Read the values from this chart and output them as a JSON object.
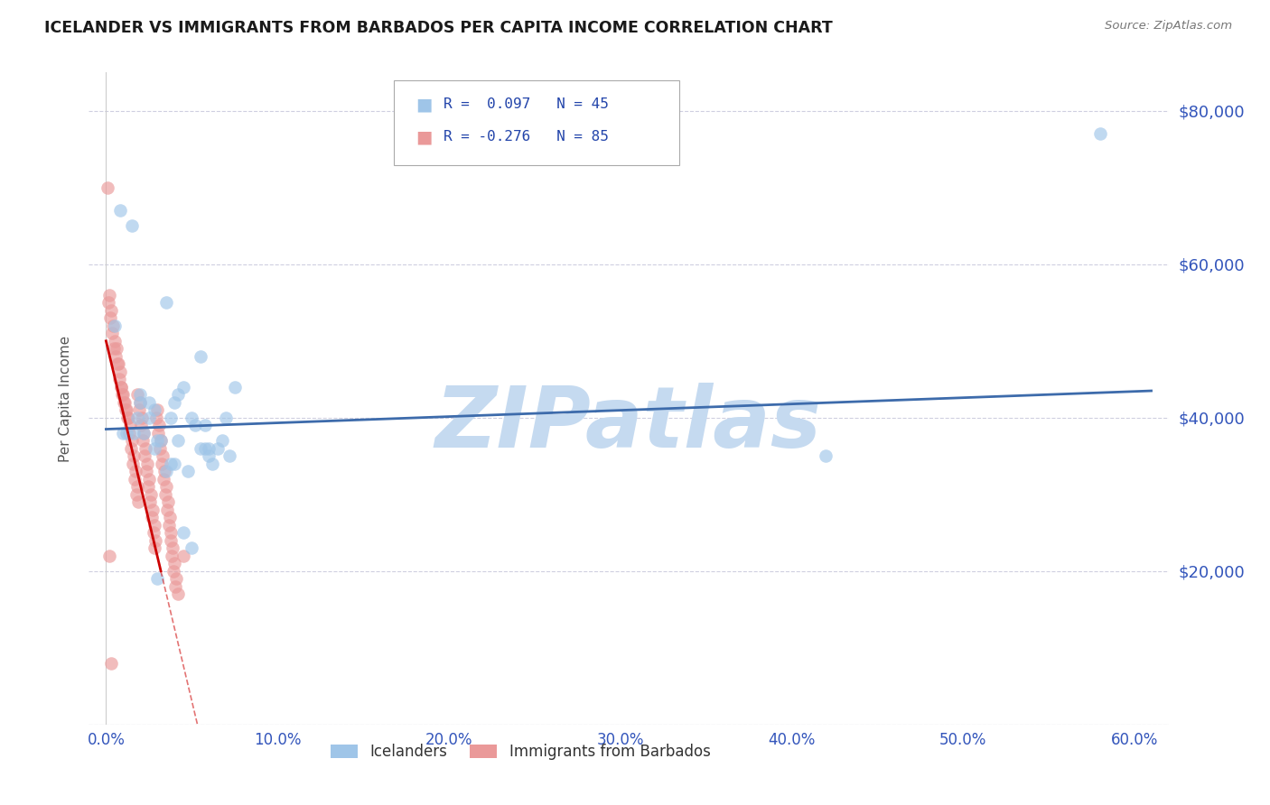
{
  "title": "ICELANDER VS IMMIGRANTS FROM BARBADOS PER CAPITA INCOME CORRELATION CHART",
  "source": "Source: ZipAtlas.com",
  "ylabel": "Per Capita Income",
  "xlabel_ticks": [
    "0.0%",
    "10.0%",
    "20.0%",
    "30.0%",
    "40.0%",
    "50.0%",
    "60.0%"
  ],
  "xlabel_vals": [
    0,
    10,
    20,
    30,
    40,
    50,
    60
  ],
  "ytick_vals": [
    0,
    20000,
    40000,
    60000,
    80000
  ],
  "ytick_labels": [
    "",
    "$20,000",
    "$40,000",
    "$60,000",
    "$80,000"
  ],
  "ylim": [
    0,
    85000
  ],
  "xlim": [
    -1,
    62
  ],
  "blue_color": "#9fc5e8",
  "pink_color": "#ea9999",
  "blue_line_color": "#3d6bab",
  "pink_line_color": "#cc0000",
  "watermark": "ZIPatlas",
  "watermark_color": "#c5daf0",
  "icelanders_x": [
    0.8,
    1.5,
    0.5,
    3.5,
    5.5,
    2.0,
    4.0,
    1.8,
    2.8,
    1.2,
    4.5,
    6.0,
    3.0,
    2.5,
    5.0,
    1.0,
    3.8,
    2.2,
    6.5,
    4.8,
    3.2,
    5.8,
    2.0,
    4.2,
    7.0,
    5.2,
    1.6,
    6.8,
    3.5,
    4.0,
    2.8,
    5.5,
    6.2,
    4.5,
    5.0,
    3.0,
    7.5,
    2.5,
    5.8,
    4.2,
    6.0,
    3.8,
    7.2,
    58.0,
    42.0
  ],
  "icelanders_y": [
    67000,
    65000,
    52000,
    55000,
    48000,
    43000,
    42000,
    40000,
    41000,
    38000,
    44000,
    36000,
    37000,
    42000,
    40000,
    38000,
    40000,
    38000,
    36000,
    33000,
    37000,
    36000,
    42000,
    37000,
    40000,
    39000,
    38000,
    37000,
    33000,
    34000,
    36000,
    36000,
    34000,
    25000,
    23000,
    19000,
    44000,
    40000,
    39000,
    43000,
    35000,
    34000,
    35000,
    77000,
    35000
  ],
  "barbados_x": [
    0.1,
    0.2,
    0.15,
    0.3,
    0.25,
    0.4,
    0.35,
    0.5,
    0.45,
    0.6,
    0.55,
    0.7,
    0.65,
    0.8,
    0.75,
    0.9,
    0.85,
    1.0,
    0.95,
    1.1,
    1.05,
    1.2,
    1.15,
    1.3,
    1.25,
    1.4,
    1.35,
    1.5,
    1.45,
    1.6,
    1.55,
    1.7,
    1.65,
    1.8,
    1.75,
    1.9,
    1.85,
    2.0,
    1.95,
    2.1,
    2.05,
    2.2,
    2.15,
    2.3,
    2.25,
    2.4,
    2.35,
    2.5,
    2.45,
    2.6,
    2.55,
    2.7,
    2.65,
    2.8,
    2.75,
    2.9,
    2.85,
    3.0,
    2.95,
    3.1,
    3.05,
    3.2,
    3.15,
    3.3,
    3.25,
    3.4,
    3.35,
    3.5,
    3.45,
    3.6,
    3.55,
    3.7,
    3.65,
    3.8,
    3.75,
    3.9,
    3.85,
    4.0,
    3.95,
    4.1,
    4.05,
    4.2,
    0.2,
    4.5,
    0.3
  ],
  "barbados_y": [
    70000,
    56000,
    55000,
    54000,
    53000,
    52000,
    51000,
    50000,
    49000,
    49000,
    48000,
    47000,
    47000,
    46000,
    45000,
    44000,
    44000,
    43000,
    43000,
    42000,
    42000,
    41000,
    41000,
    40000,
    40000,
    39000,
    38000,
    37000,
    36000,
    35000,
    34000,
    33000,
    32000,
    31000,
    30000,
    29000,
    43000,
    42000,
    41000,
    40000,
    39000,
    38000,
    37000,
    36000,
    35000,
    34000,
    33000,
    32000,
    31000,
    30000,
    29000,
    28000,
    27000,
    26000,
    25000,
    24000,
    23000,
    41000,
    40000,
    39000,
    38000,
    37000,
    36000,
    35000,
    34000,
    33000,
    32000,
    31000,
    30000,
    29000,
    28000,
    27000,
    26000,
    25000,
    24000,
    23000,
    22000,
    21000,
    20000,
    19000,
    18000,
    17000,
    22000,
    22000,
    8000
  ],
  "blue_trend_x0": 0,
  "blue_trend_y0": 38500,
  "blue_trend_x1": 61,
  "blue_trend_y1": 43500,
  "pink_trend_x0": 0,
  "pink_trend_y0": 50000,
  "pink_trend_x1": 3.2,
  "pink_trend_y1": 20000,
  "pink_dash_x0": 3.2,
  "pink_dash_x1": 15
}
